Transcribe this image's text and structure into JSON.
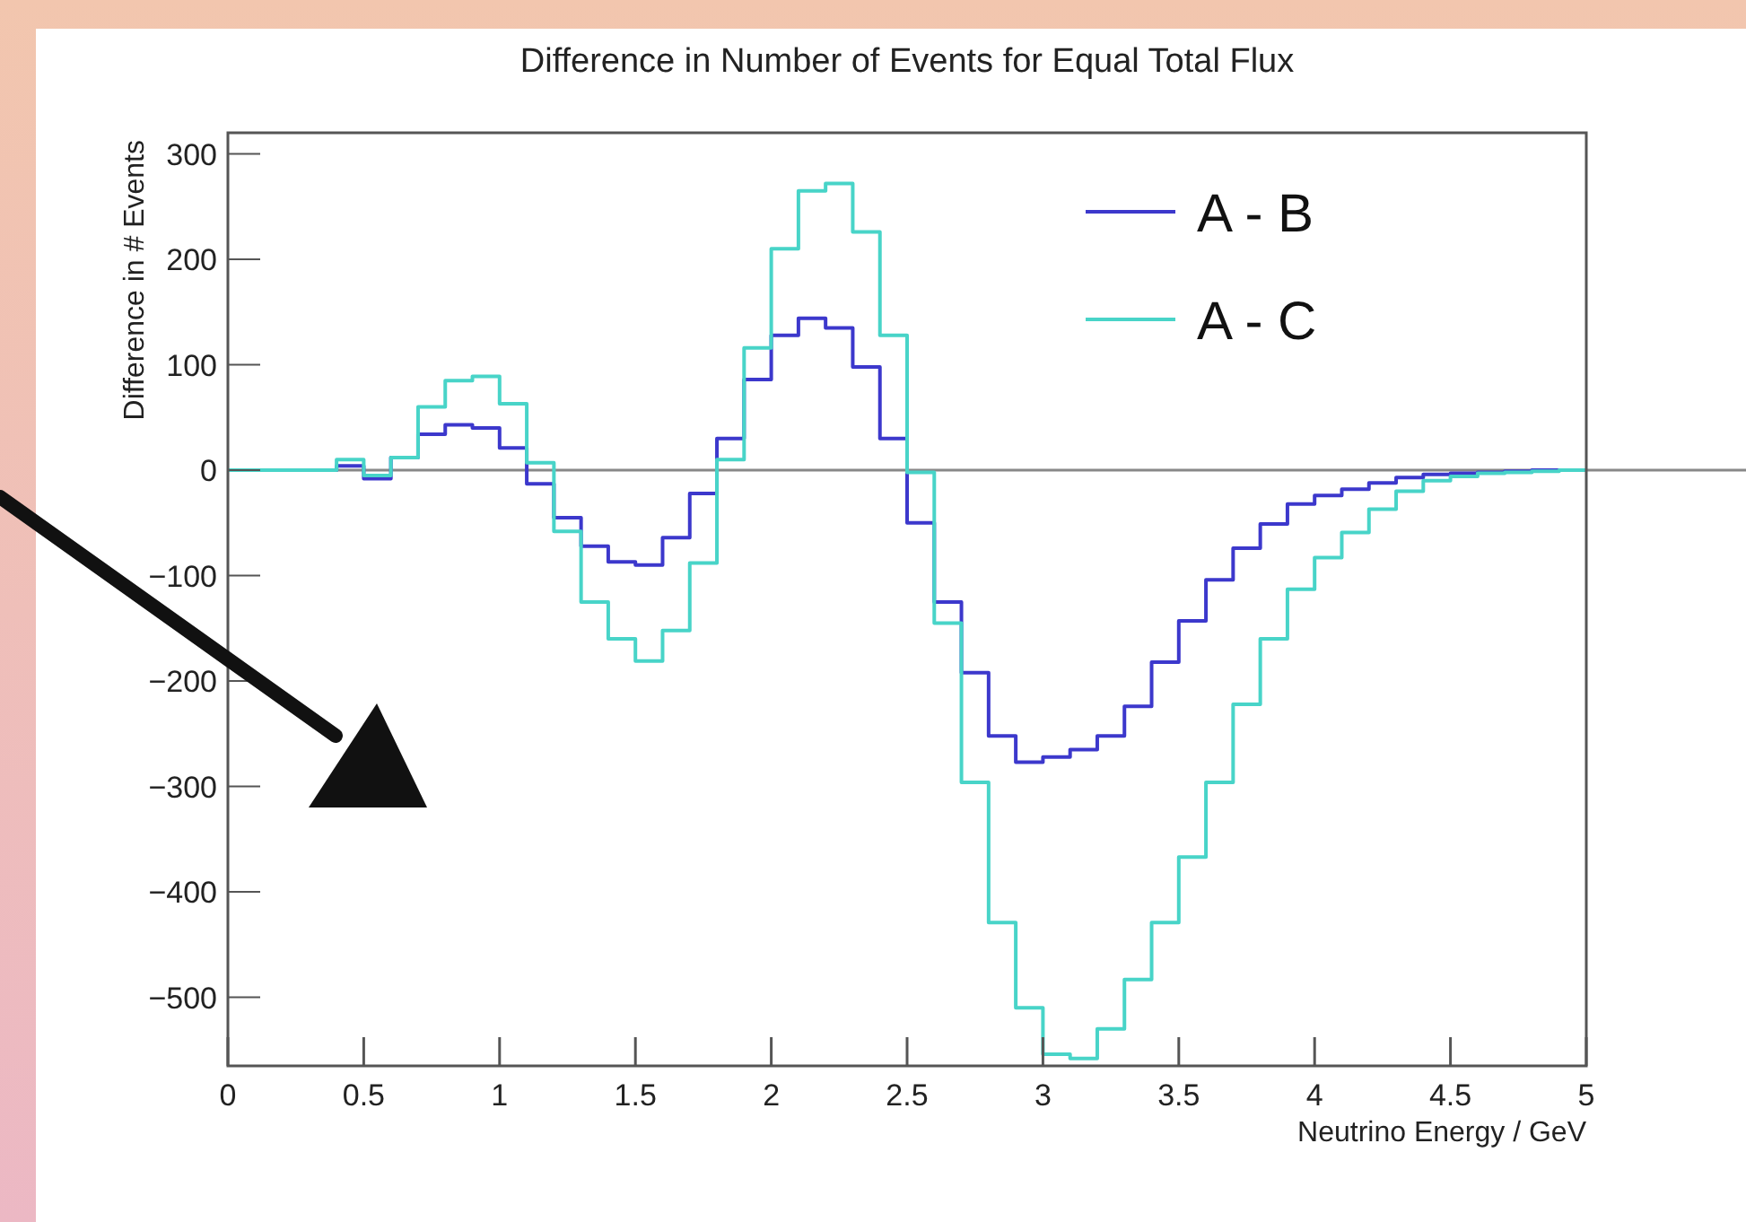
{
  "chart_data": {
    "type": "histogram",
    "title": "Difference in Number of Events for Equal Total Flux",
    "xlabel": "Neutrino Energy / GeV",
    "ylabel": "Difference in # Events",
    "bins": [
      0,
      0.1,
      0.2,
      0.3,
      0.4,
      0.5,
      0.6,
      0.7,
      0.8,
      0.9,
      1,
      1.1,
      1.2,
      1.3,
      1.4,
      1.5,
      1.6,
      1.7,
      1.8,
      1.9,
      2,
      2.1,
      2.2,
      2.3,
      2.4,
      2.5,
      2.6,
      2.7,
      2.8,
      2.9,
      3,
      3.1,
      3.2,
      3.3,
      3.4,
      3.5,
      3.6,
      3.7,
      3.8,
      3.9,
      4,
      4.1,
      4.2,
      4.3,
      4.4,
      4.5,
      4.6,
      4.7,
      4.8,
      4.9,
      5
    ],
    "series": [
      {
        "name": "A - B",
        "color": "#3c38cc",
        "values": [
          0,
          0,
          0,
          0,
          4,
          -8,
          12,
          34,
          43,
          40,
          21,
          -13,
          -45,
          -72,
          -87,
          -90,
          -64,
          -22,
          30,
          86,
          128,
          144,
          135,
          98,
          30,
          -50,
          -125,
          -192,
          -252,
          -277,
          -272,
          -265,
          -252,
          -224,
          -182,
          -143,
          -104,
          -74,
          -51,
          -32,
          -24,
          -18,
          -12,
          -7,
          -4,
          -3,
          -2,
          -1,
          0,
          0
        ]
      },
      {
        "name": "A - C",
        "color": "#48d4c8",
        "values": [
          0,
          0,
          0,
          0,
          10,
          -5,
          12,
          60,
          85,
          89,
          63,
          7,
          -58,
          -125,
          -160,
          -181,
          -152,
          -88,
          10,
          116,
          210,
          265,
          272,
          226,
          128,
          -2,
          -145,
          -296,
          -429,
          -510,
          -554,
          -558,
          -530,
          -483,
          -429,
          -367,
          -296,
          -222,
          -160,
          -113,
          -83,
          -59,
          -37,
          -20,
          -10,
          -6,
          -3,
          -2,
          -1,
          0
        ]
      }
    ],
    "xlim": [
      0,
      5
    ],
    "xticks": [
      0,
      0.5,
      1,
      1.5,
      2,
      2.5,
      3,
      3.5,
      4,
      4.5,
      5
    ],
    "ylim": [
      -565,
      320
    ],
    "yticks": [
      -500,
      -400,
      -300,
      -200,
      -100,
      0,
      100,
      200,
      300
    ],
    "ref_lines": [
      {
        "axis": "y",
        "value": 0,
        "color": "#888888"
      }
    ],
    "legend": "top right",
    "grid": false
  }
}
